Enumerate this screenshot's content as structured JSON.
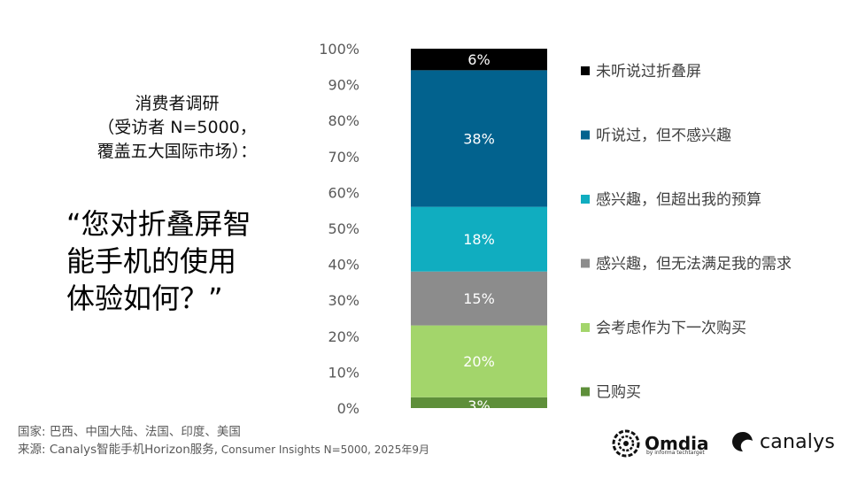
{
  "survey_label": {
    "line1": "消费者调研",
    "line2": "（受访者 N=5000，",
    "line3": "覆盖五大国际市场）："
  },
  "question": {
    "line1": "“您对折叠屏智",
    "line2": "能手机的使用",
    "line3": "体验如何？”"
  },
  "footer": {
    "countries": "国家: 巴西、中国大陆、法国、印度、美国",
    "source_main": "来源: Canalys智能手机Horizon服务,",
    "source_small": " Consumer Insights N=5000, 2025年9月"
  },
  "logos": {
    "omdia": "Omdia",
    "omdia_sub": "by informa techtarget",
    "canalys": "canalys"
  },
  "chart_data": {
    "type": "bar",
    "stacked": true,
    "ylim": [
      0,
      100
    ],
    "yticks": [
      "0%",
      "10%",
      "20%",
      "30%",
      "40%",
      "50%",
      "60%",
      "70%",
      "80%",
      "90%",
      "100%"
    ],
    "series": [
      {
        "name": "已购买",
        "value": 3,
        "label": "3%",
        "color": "#5e8f3a"
      },
      {
        "name": "会考虑作为下一次购买",
        "value": 20,
        "label": "20%",
        "color": "#a3d56b"
      },
      {
        "name": "感兴趣，但无法满足我的需求",
        "value": 15,
        "label": "15%",
        "color": "#8c8c8c"
      },
      {
        "name": "感兴趣，但超出我的预算",
        "value": 18,
        "label": "18%",
        "color": "#10adc0"
      },
      {
        "name": "听说过，但不感兴趣",
        "value": 38,
        "label": "38%",
        "color": "#02628e"
      },
      {
        "name": "未听说过折叠屏",
        "value": 6,
        "label": "6%",
        "color": "#000000"
      }
    ],
    "legend_placement": "right"
  }
}
